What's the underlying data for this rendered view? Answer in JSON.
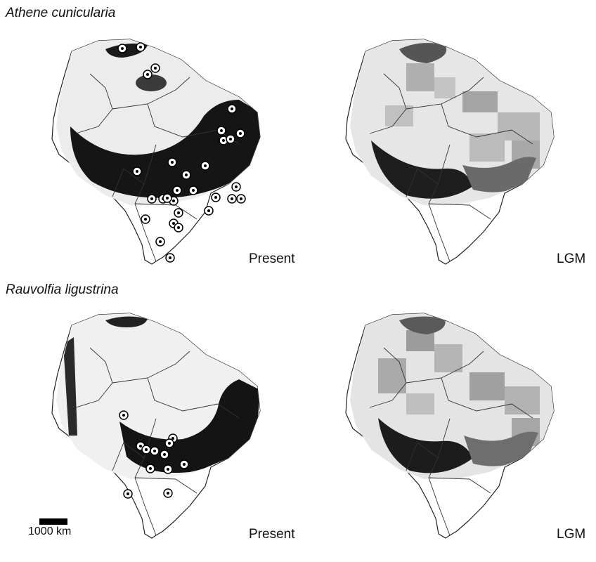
{
  "figure": {
    "rows": [
      {
        "species": "Athene cunicularia",
        "panels": [
          {
            "id": "athene-present",
            "label": "Present",
            "mode": "present"
          },
          {
            "id": "athene-lgm",
            "label": "LGM",
            "mode": "lgm"
          }
        ]
      },
      {
        "species": "Rauvolfia ligustrina",
        "panels": [
          {
            "id": "rauvolfia-present",
            "label": "Present",
            "mode": "present"
          },
          {
            "id": "rauvolfia-lgm",
            "label": "LGM",
            "mode": "lgm"
          }
        ]
      }
    ],
    "scale_bar": {
      "label": "1000 km"
    }
  },
  "colors": {
    "land_light": "#e9e9e9",
    "land_mid": "#9a9a9a",
    "land_dark": "#141414",
    "grid_gray": "#b8b8b8",
    "outline": "#222222",
    "marker_fill": "#ffffff",
    "marker_dot": "#000000"
  }
}
